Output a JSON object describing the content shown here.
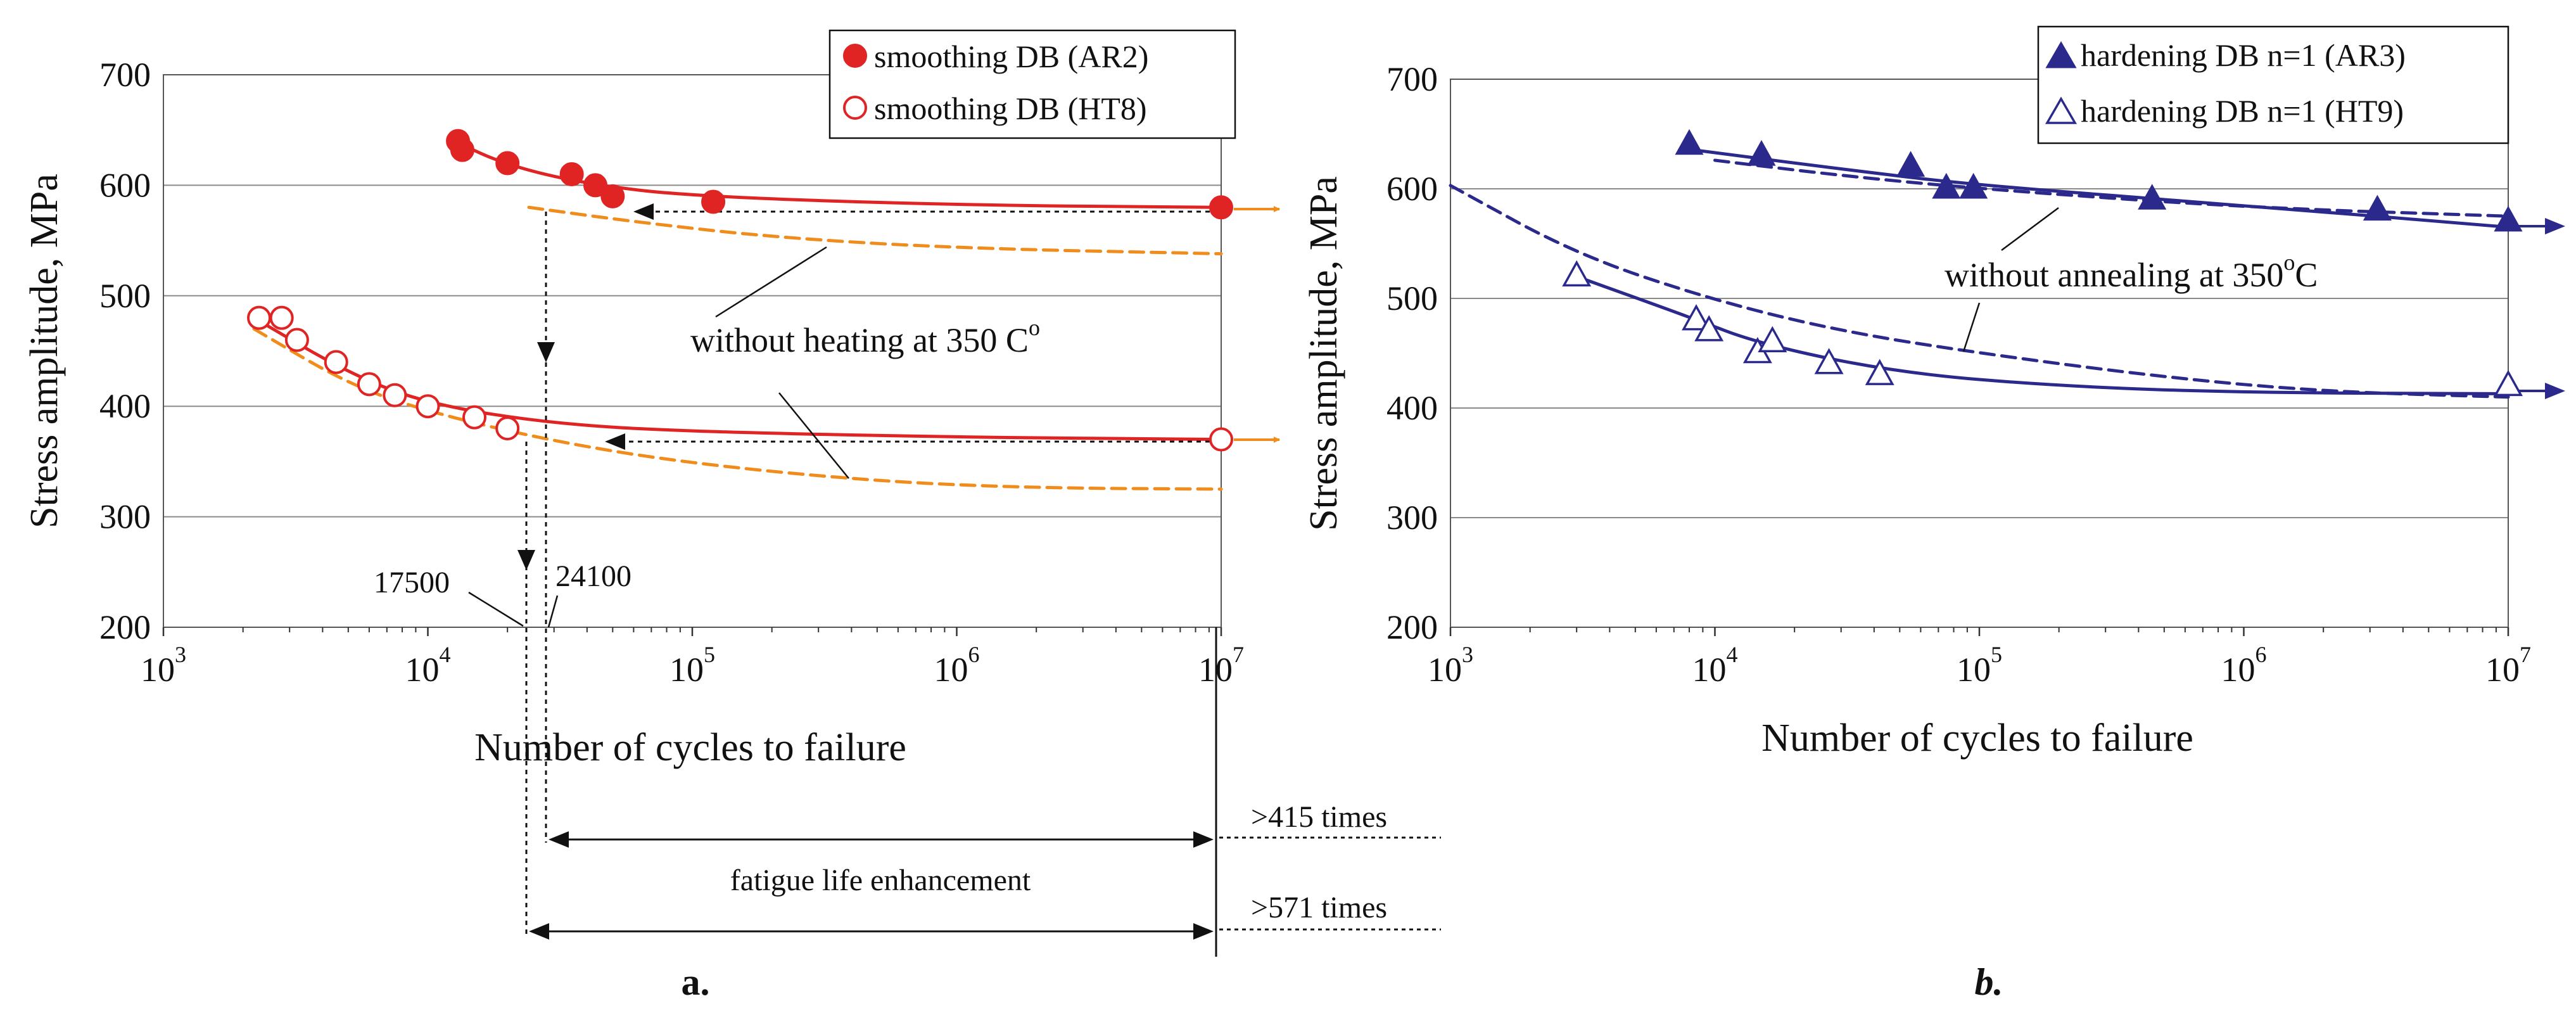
{
  "chart_data": [
    {
      "type": "line",
      "panel": "a.",
      "xscale": "log",
      "xlim": [
        1000,
        10000000
      ],
      "ylim": [
        200,
        700
      ],
      "yticks": [
        "200",
        "300",
        "400",
        "500",
        "600",
        "700"
      ],
      "xticks": [
        {
          "base": "10",
          "exp": "3"
        },
        {
          "base": "10",
          "exp": "4"
        },
        {
          "base": "10",
          "exp": "5"
        },
        {
          "base": "10",
          "exp": "6"
        },
        {
          "base": "10",
          "exp": "7"
        }
      ],
      "ylabel": "Stress amplitude, MPa",
      "xlabel": "Number of cycles to failure",
      "legend_position": "top-right",
      "series": [
        {
          "name": "smoothing DB (AR2)",
          "marker": "filled-circle",
          "color": "#e02424",
          "points": [
            [
              13000,
              640
            ],
            [
              13500,
              632
            ],
            [
              20000,
              620
            ],
            [
              35000,
              610
            ],
            [
              43000,
              600
            ],
            [
              50000,
              590
            ],
            [
              120000,
              585
            ],
            [
              10000000,
              580
            ]
          ]
        },
        {
          "name": "smoothing DB (HT8)",
          "marker": "open-circle",
          "color": "#e02424",
          "points": [
            [
              2300,
              480
            ],
            [
              2800,
              480
            ],
            [
              3200,
              460
            ],
            [
              4500,
              440
            ],
            [
              6000,
              420
            ],
            [
              7500,
              410
            ],
            [
              10000,
              400
            ],
            [
              15000,
              390
            ],
            [
              20000,
              380
            ],
            [
              10000000,
              370
            ]
          ]
        }
      ],
      "fits": [
        {
          "name": "AR2 fit",
          "color": "#e02424",
          "dash": false,
          "points": [
            [
              12500,
              640
            ],
            [
              20000,
              618
            ],
            [
              40000,
              601
            ],
            [
              100000,
              590
            ],
            [
              1000000,
              582
            ],
            [
              10000000,
              580
            ]
          ]
        },
        {
          "name": "HT8 fit",
          "color": "#e02424",
          "dash": false,
          "points": [
            [
              2200,
              480
            ],
            [
              5000,
              430
            ],
            [
              10000,
              402
            ],
            [
              30000,
              384
            ],
            [
              100000,
              377
            ],
            [
              1000000,
              372
            ],
            [
              10000000,
              370
            ]
          ]
        },
        {
          "name": "AR2 without heating",
          "color": "#f08c1c",
          "dash": true,
          "points": [
            [
              24100,
              580
            ],
            [
              60000,
              567
            ],
            [
              200000,
              553
            ],
            [
              1000000,
              543
            ],
            [
              10000000,
              538
            ]
          ]
        },
        {
          "name": "HT8 without heating",
          "color": "#f08c1c",
          "dash": true,
          "points": [
            [
              2200,
              470
            ],
            [
              5000,
              420
            ],
            [
              10000,
              395
            ],
            [
              30000,
              368
            ],
            [
              100000,
              348
            ],
            [
              500000,
              332
            ],
            [
              2000000,
              326
            ],
            [
              10000000,
              325
            ]
          ]
        }
      ],
      "annotations": {
        "without_heating": "without heating at 350 C",
        "degree": "o",
        "n_17500": "17500",
        "n_24100": "24100",
        "ratio_ar": ">415 times",
        "ratio_ht": ">571 times",
        "enhancement": "fatigue life enhancement"
      }
    },
    {
      "type": "line",
      "panel": "b.",
      "xscale": "log",
      "xlim": [
        1000,
        10000000
      ],
      "ylim": [
        200,
        700
      ],
      "yticks": [
        "200",
        "300",
        "400",
        "500",
        "600",
        "700"
      ],
      "xticks": [
        {
          "base": "10",
          "exp": "3"
        },
        {
          "base": "10",
          "exp": "4"
        },
        {
          "base": "10",
          "exp": "5"
        },
        {
          "base": "10",
          "exp": "6"
        },
        {
          "base": "10",
          "exp": "7"
        }
      ],
      "ylabel": "Stress amplitude, MPa",
      "xlabel": "Number of cycles to failure",
      "legend_position": "top-right",
      "series": [
        {
          "name": "hardening DB n=1 (AR3)",
          "marker": "filled-triangle",
          "color": "#2b2a8c",
          "points": [
            [
              8000,
              640
            ],
            [
              15000,
              630
            ],
            [
              55000,
              620
            ],
            [
              75000,
              600
            ],
            [
              95000,
              600
            ],
            [
              450000,
              590
            ],
            [
              3200000,
              580
            ],
            [
              10000000,
              570
            ]
          ]
        },
        {
          "name": "hardening DB n=1 (HT9)",
          "marker": "open-triangle",
          "color": "#2b2a8c",
          "points": [
            [
              3000,
              520
            ],
            [
              8500,
              480
            ],
            [
              9500,
              470
            ],
            [
              14500,
              450
            ],
            [
              16500,
              460
            ],
            [
              27000,
              440
            ],
            [
              42000,
              430
            ],
            [
              10000000,
              420
            ]
          ]
        }
      ],
      "fits": [
        {
          "name": "AR3 fit",
          "color": "#2b2a8c",
          "dash": false,
          "points": [
            [
              8000,
              636
            ],
            [
              30000,
              618
            ],
            [
              100000,
              603
            ],
            [
              1000000,
              585
            ],
            [
              10000000,
              565
            ]
          ]
        },
        {
          "name": "HT9 fit",
          "color": "#2b2a8c",
          "dash": false,
          "points": [
            [
              3000,
              520
            ],
            [
              8000,
              483
            ],
            [
              15000,
              458
            ],
            [
              50000,
              432
            ],
            [
              200000,
              420
            ],
            [
              1000000,
              414
            ],
            [
              10000000,
              413
            ]
          ]
        },
        {
          "name": "AR3 without annealing",
          "color": "#2b2a8c",
          "dash": true,
          "points": [
            [
              10000,
              626
            ],
            [
              30000,
              612
            ],
            [
              100000,
              600
            ],
            [
              1000000,
              583
            ],
            [
              10000000,
              575
            ]
          ]
        },
        {
          "name": "HT9 without annealing",
          "color": "#2b2a8c",
          "dash": true,
          "points": [
            [
              1000,
              603
            ],
            [
              3000,
              540
            ],
            [
              10000,
              498
            ],
            [
              30000,
              470
            ],
            [
              100000,
              450
            ],
            [
              500000,
              428
            ],
            [
              2000000,
              415
            ],
            [
              10000000,
              410
            ]
          ]
        }
      ],
      "annotations": {
        "without_annealing": "without annealing at 350",
        "degree": "o",
        "unit": "C"
      }
    }
  ]
}
